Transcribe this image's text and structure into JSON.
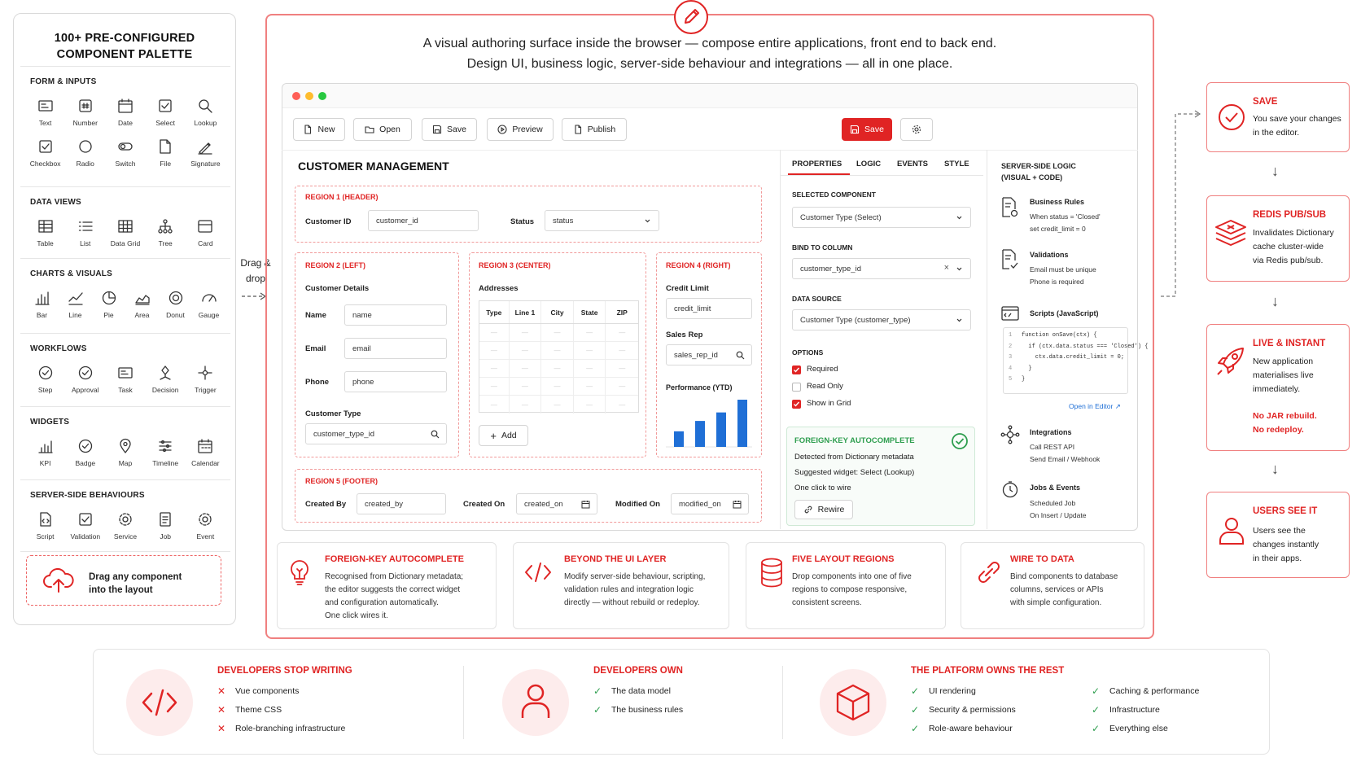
{
  "palette": {
    "title_line1": "100+ PRE-CONFIGURED",
    "title_line2": "COMPONENT PALETTE",
    "sections": [
      {
        "label": "FORM & INPUTS",
        "items": [
          "Text",
          "Number",
          "Date",
          "Select",
          "Lookup",
          "Checkbox",
          "Radio",
          "Switch",
          "File",
          "Signature"
        ]
      },
      {
        "label": "DATA VIEWS",
        "items": [
          "Table",
          "List",
          "Data Grid",
          "Tree",
          "Card"
        ]
      },
      {
        "label": "CHARTS & VISUALS",
        "items": [
          "Bar",
          "Line",
          "Pie",
          "Area",
          "Donut",
          "Gauge"
        ]
      },
      {
        "label": "WORKFLOWS",
        "items": [
          "Step",
          "Approval",
          "Task",
          "Decision",
          "Trigger"
        ]
      },
      {
        "label": "WIDGETS",
        "items": [
          "KPI",
          "Badge",
          "Map",
          "Timeline",
          "Calendar"
        ]
      },
      {
        "label": "SERVER-SIDE BEHAVIOURS",
        "items": [
          "Script",
          "Validation",
          "Service",
          "Job",
          "Event"
        ]
      }
    ],
    "drag_line1": "Drag any component",
    "drag_line2": "into the layout"
  },
  "drag_drop": {
    "line1": "Drag &",
    "line2": "drop"
  },
  "tagline": {
    "line1": "A visual authoring surface inside the browser — compose entire applications, front end to back end.",
    "line2": "Design UI, business logic, server-side behaviour and integrations — all in one place."
  },
  "toolbar": {
    "new": "New",
    "open": "Open",
    "save": "Save",
    "preview": "Preview",
    "publish": "Publish",
    "save_primary": "Save"
  },
  "canvas": {
    "title": "CUSTOMER MANAGEMENT",
    "region1": {
      "label": "REGION 1 (HEADER)",
      "customer_id_label": "Customer ID",
      "customer_id_value": "customer_id",
      "status_label": "Status",
      "status_value": "status"
    },
    "region2": {
      "label": "REGION 2 (LEFT)",
      "section": "Customer Details",
      "name_label": "Name",
      "name_value": "name",
      "email_label": "Email",
      "email_value": "email",
      "phone_label": "Phone",
      "phone_value": "phone",
      "ctype_label": "Customer Type",
      "ctype_value": "customer_type_id"
    },
    "region3": {
      "label": "REGION 3 (CENTER)",
      "section": "Addresses",
      "columns": [
        "Type",
        "Line 1",
        "City",
        "State",
        "ZIP"
      ],
      "row_placeholder": "—",
      "add": "Add"
    },
    "region4": {
      "label": "REGION 4 (RIGHT)",
      "credit_label": "Credit Limit",
      "credit_value": "credit_limit",
      "rep_label": "Sales Rep",
      "rep_value": "sales_rep_id",
      "perf_label": "Performance (YTD)",
      "perf_values": [
        0.33,
        0.55,
        0.73,
        1.0
      ]
    },
    "region5": {
      "label": "REGION 5 (FOOTER)",
      "created_by_label": "Created By",
      "created_by_value": "created_by",
      "created_on_label": "Created On",
      "created_on_value": "created_on",
      "modified_on_label": "Modified On",
      "modified_on_value": "modified_on"
    }
  },
  "properties": {
    "tabs": [
      "PROPERTIES",
      "LOGIC",
      "EVENTS",
      "STYLE"
    ],
    "selected_label": "SELECTED COMPONENT",
    "selected_value": "Customer Type (Select)",
    "bind_label": "BIND TO COLUMN",
    "bind_value": "customer_type_id",
    "source_label": "DATA SOURCE",
    "source_value": "Customer Type (customer_type)",
    "options_label": "OPTIONS",
    "options": [
      {
        "label": "Required",
        "checked": true
      },
      {
        "label": "Read Only",
        "checked": false
      },
      {
        "label": "Show in Grid",
        "checked": true
      }
    ],
    "fk_title": "FOREIGN-KEY AUTOCOMPLETE",
    "fk_line1": "Detected from Dictionary metadata",
    "fk_line2": "Suggested widget: Select (Lookup)",
    "fk_line3": "One click to wire",
    "rewire": "Rewire"
  },
  "server_logic": {
    "title_line1": "SERVER-SIDE LOGIC",
    "title_line2": "(VISUAL + CODE)",
    "business_rules_title": "Business Rules",
    "business_rules_line1": "When status = 'Closed'",
    "business_rules_line2": "set credit_limit = 0",
    "validations_title": "Validations",
    "validations_line1": "Email must be unique",
    "validations_line2": "Phone is required",
    "scripts_title": "Scripts (JavaScript)",
    "code_lines": [
      {
        "n": "1",
        "code": "function onSave(ctx) {"
      },
      {
        "n": "2",
        "code": "  if (ctx.data.status === 'Closed') {"
      },
      {
        "n": "3",
        "code": "    ctx.data.credit_limit = 0;"
      },
      {
        "n": "4",
        "code": "  }"
      },
      {
        "n": "5",
        "code": "}"
      }
    ],
    "open_editor": "Open in Editor",
    "integrations_title": "Integrations",
    "integrations_line1": "Call REST API",
    "integrations_line2": "Send Email / Webhook",
    "jobs_title": "Jobs & Events",
    "jobs_line1": "Scheduled Job",
    "jobs_line2": "On Insert / Update"
  },
  "feature_cards": [
    {
      "title": "FOREIGN-KEY AUTOCOMPLETE",
      "lines": [
        "Recognised from Dictionary metadata;",
        "the editor suggests the correct widget",
        "and configuration automatically.",
        "One click wires it."
      ]
    },
    {
      "title": "BEYOND THE UI LAYER",
      "lines": [
        "Modify server-side behaviour, scripting,",
        "validation rules and integration logic",
        "directly — without rebuild or redeploy."
      ]
    },
    {
      "title": "FIVE LAYOUT REGIONS",
      "lines": [
        "Drop components into one of five",
        "regions to compose responsive,",
        "consistent screens."
      ]
    },
    {
      "title": "WIRE TO DATA",
      "lines": [
        "Bind components to database",
        "columns, services or APIs",
        "with simple configuration."
      ]
    }
  ],
  "flow": [
    {
      "title": "SAVE",
      "lines": [
        "You save your changes",
        "in the editor."
      ],
      "red_lines": []
    },
    {
      "title": "REDIS PUB/SUB",
      "lines": [
        "Invalidates Dictionary",
        "cache cluster-wide",
        "via Redis pub/sub."
      ],
      "red_lines": []
    },
    {
      "title": "LIVE & INSTANT",
      "lines": [
        "New application",
        "materialises live",
        "immediately."
      ],
      "red_lines": [
        "No JAR rebuild.",
        "No redeploy."
      ]
    },
    {
      "title": "USERS SEE IT",
      "lines": [
        "Users see the",
        "changes instantly",
        "in their apps."
      ],
      "red_lines": []
    }
  ],
  "bottom": {
    "stop": {
      "title": "DEVELOPERS STOP WRITING",
      "items": [
        "Vue components",
        "Theme CSS",
        "Role-branching infrastructure"
      ]
    },
    "own": {
      "title": "DEVELOPERS OWN",
      "items": [
        "The data model",
        "The business rules"
      ]
    },
    "platform": {
      "title": "THE PLATFORM OWNS THE REST",
      "col1": [
        "UI rendering",
        "Security & permissions",
        "Role-aware behaviour"
      ],
      "col2": [
        "Caching & performance",
        "Infrastructure",
        "Everything else"
      ]
    }
  },
  "colors": {
    "accent": "#e02424",
    "accent_light": "#fdecec",
    "success": "#2e9e4f",
    "bar": "#1f6fd6"
  }
}
